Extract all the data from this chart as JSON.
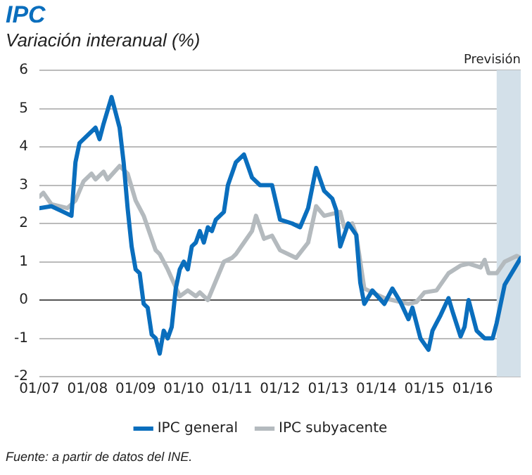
{
  "chart_data": {
    "type": "line",
    "title": "IPC",
    "subtitle": "Variación interanual (%)",
    "annotations": [
      "Fuente: a partir de datos del INE."
    ],
    "xlim": [
      "2007-01",
      "2017-01"
    ],
    "xticks": [
      {
        "value": "2007-01",
        "label": "01/07"
      },
      {
        "value": "2008-01",
        "label": "01/08"
      },
      {
        "value": "2009-01",
        "label": "01/09"
      },
      {
        "value": "2010-01",
        "label": "01/10"
      },
      {
        "value": "2011-01",
        "label": "01/11"
      },
      {
        "value": "2012-01",
        "label": "01/12"
      },
      {
        "value": "2013-01",
        "label": "01/13"
      },
      {
        "value": "2014-01",
        "label": "01/14"
      },
      {
        "value": "2015-01",
        "label": "01/15"
      },
      {
        "value": "2016-01",
        "label": "01/16"
      }
    ],
    "ylim": [
      -2,
      6
    ],
    "yticks": [
      -2,
      -1,
      0,
      1,
      2,
      3,
      4,
      5,
      6
    ],
    "grid": "y",
    "legend": "bottom",
    "marker": "none",
    "line_style": "solid",
    "bands": [
      {
        "axis": "x",
        "from": "2016-07",
        "to": "2017-01",
        "label": "Previsión",
        "color": "#d3e0e9"
      }
    ],
    "series": [
      {
        "name": "IPC general",
        "color": "#0a6ebd",
        "x": [
          "2007-01",
          "2007-04",
          "2007-07",
          "2007-09",
          "2007-10",
          "2007-11",
          "2007-12",
          "2008-01",
          "2008-03",
          "2008-04",
          "2008-05",
          "2008-07",
          "2008-09",
          "2008-10",
          "2008-11",
          "2008-12",
          "2009-01",
          "2009-02",
          "2009-03",
          "2009-04",
          "2009-05",
          "2009-06",
          "2009-07",
          "2009-08",
          "2009-09",
          "2009-10",
          "2009-11",
          "2009-12",
          "2010-01",
          "2010-02",
          "2010-03",
          "2010-04",
          "2010-05",
          "2010-06",
          "2010-07",
          "2010-08",
          "2010-09",
          "2010-11",
          "2010-12",
          "2011-01",
          "2011-02",
          "2011-04",
          "2011-06",
          "2011-08",
          "2011-11",
          "2012-01",
          "2012-04",
          "2012-06",
          "2012-08",
          "2012-10",
          "2012-12",
          "2013-02",
          "2013-03",
          "2013-04",
          "2013-06",
          "2013-08",
          "2013-09",
          "2013-10",
          "2013-12",
          "2014-03",
          "2014-05",
          "2014-07",
          "2014-09",
          "2014-10",
          "2014-12",
          "2015-02",
          "2015-03",
          "2015-04",
          "2015-05",
          "2015-07",
          "2015-08",
          "2015-10",
          "2015-11",
          "2015-12",
          "2016-02",
          "2016-04",
          "2016-06",
          "2016-07",
          "2016-09",
          "2016-11",
          "2017-01"
        ],
        "values": [
          2.4,
          2.45,
          2.3,
          2.2,
          3.6,
          4.1,
          4.2,
          4.3,
          4.5,
          4.2,
          4.6,
          5.3,
          4.5,
          3.6,
          2.4,
          1.4,
          0.8,
          0.7,
          -0.1,
          -0.2,
          -0.9,
          -1,
          -1.4,
          -0.8,
          -1,
          -0.7,
          0.3,
          0.8,
          1,
          0.8,
          1.4,
          1.5,
          1.8,
          1.5,
          1.9,
          1.8,
          2.1,
          2.3,
          3,
          3.3,
          3.6,
          3.8,
          3.2,
          3,
          3,
          2.1,
          2,
          1.9,
          2.4,
          3.45,
          2.85,
          2.65,
          2.35,
          1.4,
          2,
          1.7,
          0.45,
          -0.1,
          0.25,
          -0.1,
          0.3,
          -0.05,
          -0.5,
          -0.2,
          -1,
          -1.3,
          -0.8,
          -0.6,
          -0.4,
          0.05,
          -0.3,
          -0.95,
          -0.7,
          0,
          -0.8,
          -1,
          -1,
          -0.6,
          0.4,
          0.75,
          1.1
        ]
      },
      {
        "name": "IPC subyacente",
        "color": "#b4babe",
        "x": [
          "2007-01",
          "2007-02",
          "2007-04",
          "2007-08",
          "2007-10",
          "2007-12",
          "2008-02",
          "2008-03",
          "2008-05",
          "2008-06",
          "2008-09",
          "2008-11",
          "2009-01",
          "2009-03",
          "2009-06",
          "2009-07",
          "2009-09",
          "2009-12",
          "2010-02",
          "2010-04",
          "2010-05",
          "2010-07",
          "2010-09",
          "2010-11",
          "2011-01",
          "2011-02",
          "2011-04",
          "2011-06",
          "2011-07",
          "2011-09",
          "2011-11",
          "2012-01",
          "2012-05",
          "2012-08",
          "2012-10",
          "2012-12",
          "2013-04",
          "2013-05",
          "2013-07",
          "2013-08",
          "2013-10",
          "2013-12",
          "2014-03",
          "2014-05",
          "2014-09",
          "2014-11",
          "2015-01",
          "2015-04",
          "2015-07",
          "2015-10",
          "2015-12",
          "2016-03",
          "2016-04",
          "2016-05",
          "2016-07",
          "2016-09",
          "2016-12",
          "2017-01"
        ],
        "values": [
          2.7,
          2.8,
          2.5,
          2.4,
          2.6,
          3.1,
          3.3,
          3.15,
          3.35,
          3.15,
          3.5,
          3.3,
          2.6,
          2.2,
          1.3,
          1.2,
          0.8,
          0.1,
          0.25,
          0.1,
          0.2,
          0,
          0.5,
          1,
          1.1,
          1.2,
          1.5,
          1.8,
          2.2,
          1.6,
          1.68,
          1.3,
          1.1,
          1.5,
          2.45,
          2.2,
          2.3,
          1.9,
          2,
          1.7,
          0.3,
          0.2,
          0.05,
          0,
          -0.1,
          -0.05,
          0.2,
          0.25,
          0.7,
          0.9,
          0.95,
          0.85,
          1.05,
          0.7,
          0.7,
          1,
          1.15,
          1.1
        ]
      }
    ]
  }
}
